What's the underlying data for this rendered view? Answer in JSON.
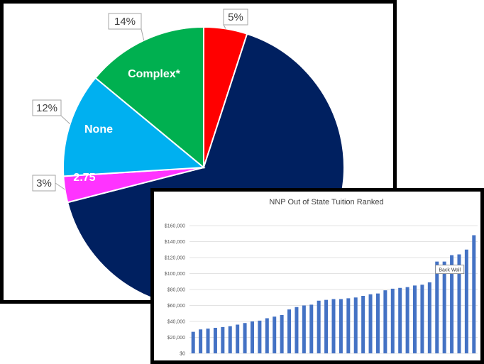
{
  "chart_data": [
    {
      "type": "pie",
      "slices": [
        {
          "percent_label": "5%",
          "inner_label": "",
          "value": 5,
          "color": "#ff0000"
        },
        {
          "percent_label": "",
          "inner_label": "",
          "value": 66,
          "color": "#002060"
        },
        {
          "percent_label": "3%",
          "inner_label": "2.75",
          "value": 3,
          "color": "#ff33ff"
        },
        {
          "percent_label": "12%",
          "inner_label": "None",
          "value": 12,
          "color": "#00b0f0"
        },
        {
          "percent_label": "14%",
          "inner_label": "Complex*",
          "value": 14,
          "color": "#00b050"
        }
      ],
      "legend": "none"
    },
    {
      "type": "bar",
      "title": "NNP Out of State Tuition Ranked",
      "y_ticks": [
        "$0",
        "$20,000",
        "$40,000",
        "$60,000",
        "$80,000",
        "$100,000",
        "$120,000",
        "$140,000",
        "$160,000"
      ],
      "ylim": [
        0,
        160000
      ],
      "bar_color": "#4472c4",
      "grid": true,
      "annotation": {
        "text": "Back Wall",
        "bar_index": 33
      },
      "values": [
        27000,
        30000,
        31000,
        32000,
        33000,
        34000,
        36000,
        38000,
        40000,
        41000,
        44000,
        46000,
        48000,
        55000,
        58000,
        60000,
        61000,
        66000,
        67000,
        68000,
        68000,
        69000,
        70000,
        72000,
        74000,
        75000,
        79000,
        81000,
        82000,
        83000,
        85000,
        86000,
        89000,
        115000,
        115000,
        123000,
        124000,
        130000,
        148000
      ]
    }
  ]
}
